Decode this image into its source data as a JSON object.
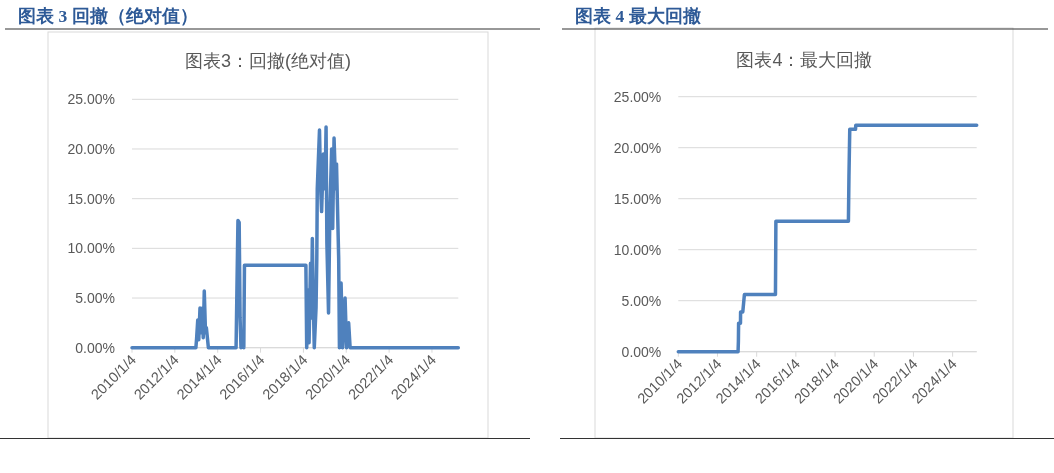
{
  "chart_data": [
    {
      "type": "line",
      "title": "图表 3 回撤（绝对值）",
      "subtitle": "图表3：回撤(绝对值)",
      "x": [
        "2010-01-04",
        "2012-12-28",
        "2013-01-10",
        "2013-01-29",
        "2013-02-15",
        "2013-03-08",
        "2013-03-25",
        "2013-04-22",
        "2013-05-02",
        "2013-05-20",
        "2013-06-10",
        "2013-06-25",
        "2013-07-29",
        "2014-11-13",
        "2014-12-15",
        "2015-01-05",
        "2015-01-20",
        "2015-02-05",
        "2015-03-10",
        "2015-03-25",
        "2015-04-05",
        "2018-02-15",
        "2018-03-01",
        "2018-03-28",
        "2018-04-10",
        "2018-05-05",
        "2018-05-20",
        "2018-06-05",
        "2018-06-20",
        "2018-07-08",
        "2018-08-07",
        "2018-08-20",
        "2018-08-28",
        "2018-10-05",
        "2018-10-25",
        "2018-11-10",
        "2018-12-10",
        "2019-01-08",
        "2019-01-25",
        "2019-02-08",
        "2019-03-08",
        "2019-04-01",
        "2019-04-30",
        "2019-05-18",
        "2019-06-10",
        "2019-07-08",
        "2019-07-22",
        "2019-08-28",
        "2019-09-10",
        "2019-10-08",
        "2019-11-03",
        "2019-12-15",
        "2020-01-10",
        "2020-02-14",
        "2020-03-10",
        "2025-03-28"
      ],
      "series": [
        {
          "color": "#4f81bd",
          "values": [
            0,
            0,
            1.0,
            2.8,
            0.8,
            4.0,
            1.5,
            4.0,
            1.0,
            5.7,
            1.5,
            2.0,
            0,
            0,
            12.8,
            12.6,
            3.0,
            0,
            1.5,
            0,
            8.3,
            8.3,
            0,
            5.8,
            0.5,
            8.5,
            3.0,
            11.0,
            5.0,
            0,
            4.0,
            9.0,
            16.0,
            21.9,
            16.0,
            13.7,
            19.5,
            16.0,
            22.2,
            10.5,
            3.5,
            14.0,
            20.0,
            12.0,
            21.1,
            16.0,
            18.5,
            9.0,
            0,
            6.5,
            0,
            5.0,
            0,
            2.5,
            0,
            0
          ]
        }
      ],
      "xlim": [
        "2010-01-04",
        "2025-03-28"
      ],
      "xticks": [
        {
          "value": "2010-01-04",
          "label": "2010/1/4"
        },
        {
          "value": "2012-01-04",
          "label": "2012/1/4"
        },
        {
          "value": "2014-01-04",
          "label": "2014/1/4"
        },
        {
          "value": "2016-01-04",
          "label": "2016/1/4"
        },
        {
          "value": "2018-01-04",
          "label": "2018/1/4"
        },
        {
          "value": "2020-01-04",
          "label": "2020/1/4"
        },
        {
          "value": "2022-01-04",
          "label": "2022/1/4"
        },
        {
          "value": "2024-01-04",
          "label": "2024/1/4"
        }
      ],
      "ylim": [
        0,
        25
      ],
      "yticks": [
        {
          "value": 0,
          "label": "0.00%"
        },
        {
          "value": 5,
          "label": "5.00%"
        },
        {
          "value": 10,
          "label": "10.00%"
        },
        {
          "value": 15,
          "label": "15.00%"
        },
        {
          "value": 20,
          "label": "20.00%"
        },
        {
          "value": 25,
          "label": "25.00%"
        }
      ],
      "grid": "y"
    },
    {
      "type": "line",
      "title": "图表 4 最大回撤",
      "subtitle": "图表4：最大回撤",
      "x": [
        "2010-01-04",
        "2013-01-22",
        "2013-01-28",
        "2013-02-01",
        "2013-03-08",
        "2013-03-10",
        "2013-04-20",
        "2013-05-20",
        "2014-12-20",
        "2014-12-28",
        "2018-09-10",
        "2018-09-20",
        "2018-10-05",
        "2019-01-20",
        "2019-01-25",
        "2025-03-28"
      ],
      "series": [
        {
          "color": "#4f81bd",
          "values": [
            0,
            0,
            1.0,
            2.8,
            2.8,
            3.9,
            3.9,
            5.6,
            5.6,
            12.8,
            12.8,
            17.2,
            21.8,
            21.8,
            22.2,
            22.2
          ]
        }
      ],
      "xlim": [
        "2010-01-04",
        "2025-03-28"
      ],
      "xticks": [
        {
          "value": "2010-01-04",
          "label": "2010/1/4"
        },
        {
          "value": "2012-01-04",
          "label": "2012/1/4"
        },
        {
          "value": "2014-01-04",
          "label": "2014/1/4"
        },
        {
          "value": "2016-01-04",
          "label": "2016/1/4"
        },
        {
          "value": "2018-01-04",
          "label": "2018/1/4"
        },
        {
          "value": "2020-01-04",
          "label": "2020/1/4"
        },
        {
          "value": "2022-01-04",
          "label": "2022/1/4"
        },
        {
          "value": "2024-01-04",
          "label": "2024/1/4"
        }
      ],
      "ylim": [
        0,
        25
      ],
      "yticks": [
        {
          "value": 0,
          "label": "0.00%"
        },
        {
          "value": 5,
          "label": "5.00%"
        },
        {
          "value": 10,
          "label": "10.00%"
        },
        {
          "value": 15,
          "label": "15.00%"
        },
        {
          "value": 20,
          "label": "20.00%"
        },
        {
          "value": 25,
          "label": "25.00%"
        }
      ],
      "grid": "y"
    }
  ]
}
